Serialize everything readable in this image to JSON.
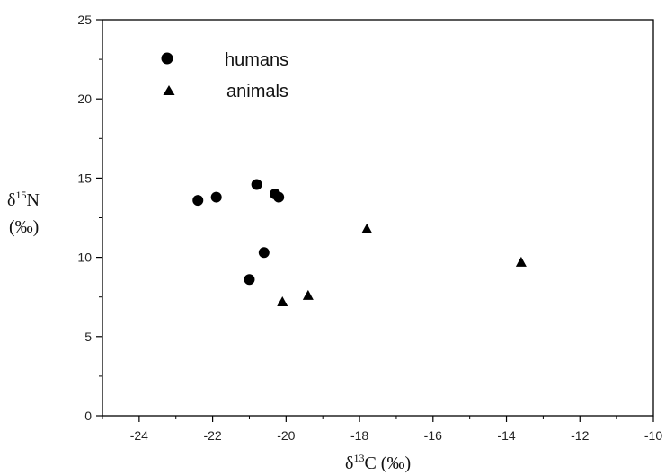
{
  "chart_data": {
    "type": "scatter",
    "xlabel": {
      "prefix": "δ",
      "sup": "13",
      "main": "C (‰)"
    },
    "ylabel": {
      "prefix": "δ",
      "sup": "15",
      "main": "N",
      "line2": "(‰)"
    },
    "xlim": [
      -25,
      -10
    ],
    "ylim": [
      0,
      25
    ],
    "xticks": [
      -24,
      -22,
      -20,
      -18,
      -16,
      -14,
      -12,
      -10
    ],
    "yticks": [
      0,
      5,
      10,
      15,
      20,
      25
    ],
    "xtick_labels": [
      "-24",
      "-22",
      "-20",
      "-18",
      "-16",
      "-14",
      "-12",
      "-10"
    ],
    "ytick_labels": [
      "0",
      "5",
      "10",
      "15",
      "20",
      "25"
    ],
    "grid": false,
    "legend_position": "top-left",
    "series": [
      {
        "name": "humans",
        "marker": "circle",
        "color": "#000000",
        "points": [
          {
            "x": -22.4,
            "y": 13.6
          },
          {
            "x": -21.9,
            "y": 13.8
          },
          {
            "x": -20.8,
            "y": 14.6
          },
          {
            "x": -20.3,
            "y": 14.0
          },
          {
            "x": -20.2,
            "y": 13.8
          },
          {
            "x": -20.6,
            "y": 10.3
          },
          {
            "x": -21.0,
            "y": 8.6
          }
        ]
      },
      {
        "name": "animals",
        "marker": "triangle",
        "color": "#000000",
        "points": [
          {
            "x": -20.1,
            "y": 7.2
          },
          {
            "x": -19.4,
            "y": 7.6
          },
          {
            "x": -17.8,
            "y": 11.8
          },
          {
            "x": -13.6,
            "y": 9.7
          }
        ]
      }
    ]
  }
}
